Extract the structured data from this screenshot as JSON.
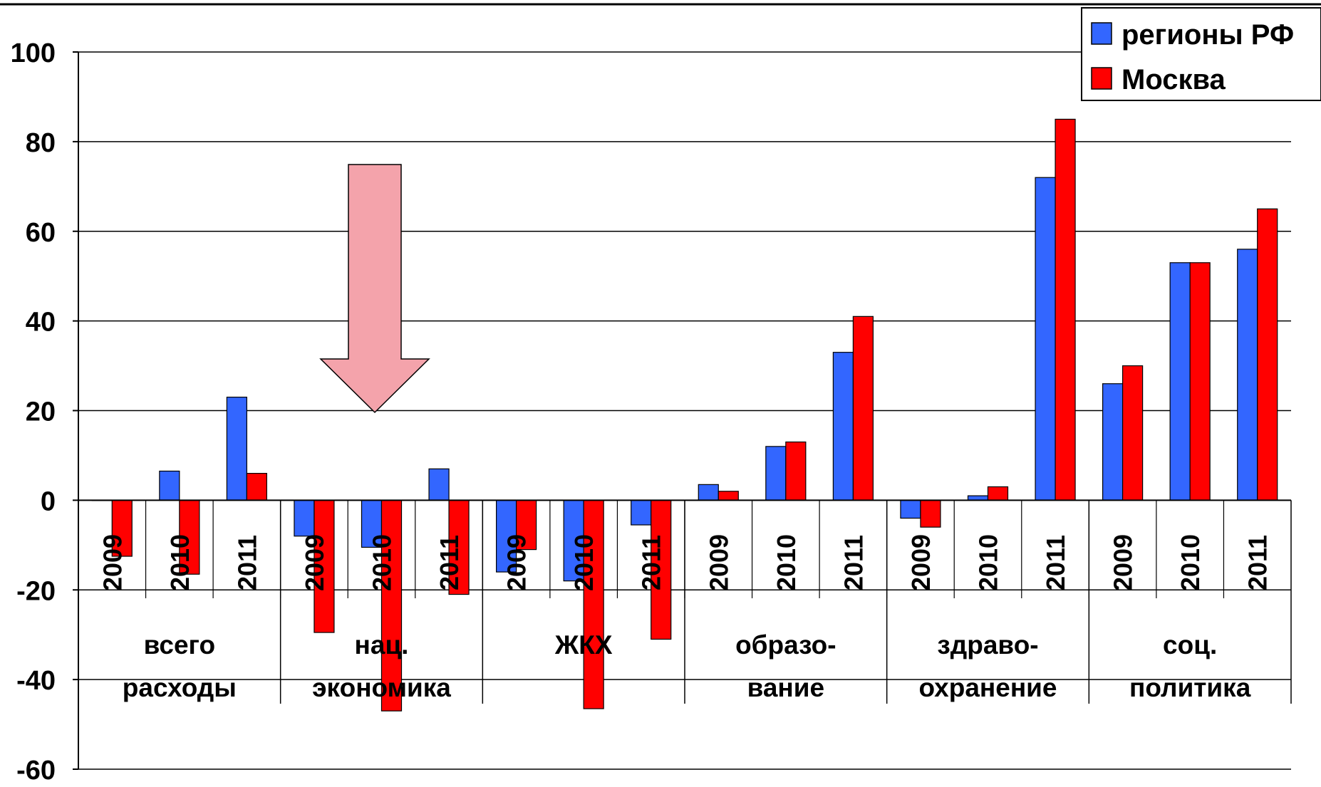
{
  "chart_data": {
    "type": "bar",
    "title": "",
    "xlabel": "",
    "ylabel": "",
    "ylim": [
      -60,
      100
    ],
    "yticks": [
      "100",
      "80",
      "60",
      "40",
      "20",
      "0",
      "-20",
      "-40",
      "-60"
    ],
    "grid": true,
    "legend": {
      "placement": "top-right"
    },
    "groups": [
      {
        "label_lines": [
          "всего",
          "расходы"
        ],
        "years": [
          "2009",
          "2010",
          "2011"
        ]
      },
      {
        "label_lines": [
          "нац.",
          "экономика"
        ],
        "years": [
          "2009",
          "2010",
          "2011"
        ]
      },
      {
        "label_lines": [
          "ЖКХ"
        ],
        "years": [
          "2009",
          "2010",
          "2011"
        ]
      },
      {
        "label_lines": [
          "образо-",
          "вание"
        ],
        "years": [
          "2009",
          "2010",
          "2011"
        ]
      },
      {
        "label_lines": [
          "здраво-",
          "охранение"
        ],
        "years": [
          "2009",
          "2010",
          "2011"
        ]
      },
      {
        "label_lines": [
          "соц.",
          "политика"
        ],
        "years": [
          "2009",
          "2010",
          "2011"
        ]
      }
    ],
    "series": [
      {
        "name": "регионы РФ",
        "color": "#3366ff",
        "values": [
          0,
          6.5,
          23,
          -8,
          -10.5,
          7,
          -16,
          -18,
          -5.5,
          3.5,
          12,
          33,
          -4,
          1,
          72,
          26,
          53,
          56
        ]
      },
      {
        "name": "Москва",
        "color": "#ff0000",
        "values": [
          -12.5,
          -16.5,
          6,
          -29.5,
          -47,
          -21,
          -11,
          -46.5,
          -31,
          2,
          13,
          41,
          -6,
          3,
          85,
          30,
          53,
          65
        ]
      }
    ],
    "annotation": {
      "type": "down-arrow",
      "color": "#f4a3ab"
    }
  }
}
